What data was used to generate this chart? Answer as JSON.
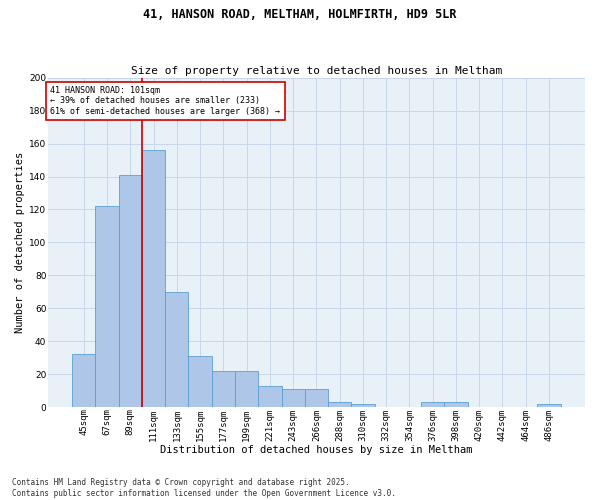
{
  "title_line1": "41, HANSON ROAD, MELTHAM, HOLMFIRTH, HD9 5LR",
  "title_line2": "Size of property relative to detached houses in Meltham",
  "xlabel": "Distribution of detached houses by size in Meltham",
  "ylabel": "Number of detached properties",
  "footnote": "Contains HM Land Registry data © Crown copyright and database right 2025.\nContains public sector information licensed under the Open Government Licence v3.0.",
  "categories": [
    "45sqm",
    "67sqm",
    "89sqm",
    "111sqm",
    "133sqm",
    "155sqm",
    "177sqm",
    "199sqm",
    "221sqm",
    "243sqm",
    "266sqm",
    "288sqm",
    "310sqm",
    "332sqm",
    "354sqm",
    "376sqm",
    "398sqm",
    "420sqm",
    "442sqm",
    "464sqm",
    "486sqm"
  ],
  "values": [
    32,
    122,
    141,
    156,
    70,
    31,
    22,
    22,
    13,
    11,
    11,
    3,
    2,
    0,
    0,
    3,
    3,
    0,
    0,
    0,
    2
  ],
  "bar_color": "#aec6e8",
  "bar_edge_color": "#5a9fd4",
  "grid_color": "#c8d8ea",
  "background_color": "#e8f0f8",
  "vline_x": 2.5,
  "vline_color": "#cc0000",
  "annotation_text": "41 HANSON ROAD: 101sqm\n← 39% of detached houses are smaller (233)\n61% of semi-detached houses are larger (368) →",
  "annotation_box_color": "#cc0000",
  "ylim": [
    0,
    200
  ],
  "yticks": [
    0,
    20,
    40,
    60,
    80,
    100,
    120,
    140,
    160,
    180,
    200
  ],
  "title1_fontsize": 8.5,
  "title2_fontsize": 8,
  "xlabel_fontsize": 7.5,
  "ylabel_fontsize": 7.5,
  "tick_fontsize": 6.5,
  "annotation_fontsize": 6,
  "footnote_fontsize": 5.5
}
